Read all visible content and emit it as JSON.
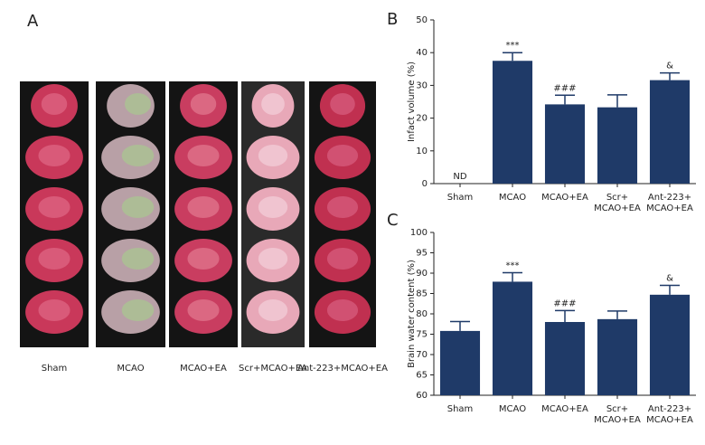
{
  "panel_labels": [
    "A",
    "B",
    "C"
  ],
  "photo_labels": [
    "Sham",
    "MCAO",
    "MCAO+EA",
    "Scr+MCAO+EA",
    "Ant-223+MCAO+EA"
  ],
  "chart_data": [
    {
      "type": "bar",
      "y_label": "Infact volume (%)",
      "categories": [
        "Sham",
        "MCAO",
        "MCAO+EA",
        "Scr+\nMCAO+EA",
        "Ant-223+\nMCAO+EA"
      ],
      "values": [
        null,
        37.5,
        24.2,
        23.3,
        31.6
      ],
      "errors": [
        null,
        2.5,
        2.8,
        3.8,
        2.2
      ],
      "annotations": [
        "ND",
        "***",
        "###",
        null,
        "&"
      ],
      "color": "#1f3a68",
      "ylim": [
        0,
        50
      ],
      "yticks": [
        0,
        10,
        20,
        30,
        40,
        50
      ]
    },
    {
      "type": "bar",
      "y_label": "Brain water content (%)",
      "categories": [
        "Sham",
        "MCAO",
        "MCAO+EA",
        "Scr+\nMCAO+EA",
        "Ant-223+\nMCAO+EA"
      ],
      "values": [
        75.8,
        87.9,
        78.0,
        78.7,
        84.7
      ],
      "errors": [
        2.3,
        2.2,
        2.8,
        2.0,
        2.3
      ],
      "annotations": [
        null,
        "***",
        "###",
        null,
        "&"
      ],
      "color": "#1f3a68",
      "ylim": [
        60,
        100
      ],
      "yticks": [
        60,
        65,
        70,
        75,
        80,
        85,
        90,
        95,
        100
      ]
    }
  ]
}
